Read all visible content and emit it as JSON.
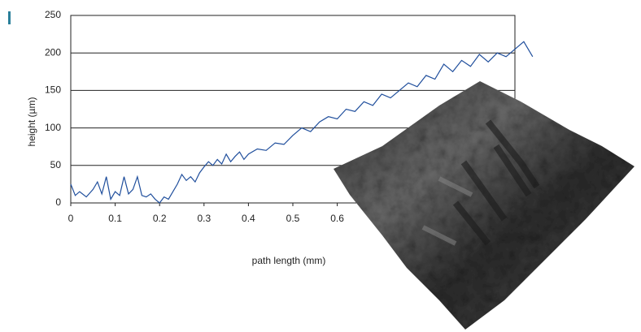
{
  "chart_data": {
    "type": "line",
    "x_label": "path length (mm)",
    "y_label": "height (µm)",
    "x": [
      0,
      0.01,
      0.02,
      0.035,
      0.05,
      0.06,
      0.07,
      0.08,
      0.09,
      0.1,
      0.11,
      0.12,
      0.13,
      0.14,
      0.15,
      0.16,
      0.17,
      0.18,
      0.19,
      0.2,
      0.21,
      0.22,
      0.23,
      0.24,
      0.25,
      0.26,
      0.27,
      0.28,
      0.29,
      0.3,
      0.31,
      0.32,
      0.33,
      0.34,
      0.35,
      0.36,
      0.37,
      0.38,
      0.39,
      0.4,
      0.42,
      0.44,
      0.46,
      0.48,
      0.5,
      0.52,
      0.54,
      0.56,
      0.58,
      0.6,
      0.62,
      0.64,
      0.66,
      0.68,
      0.7,
      0.72,
      0.74,
      0.76,
      0.78,
      0.8,
      0.82,
      0.84,
      0.86,
      0.88,
      0.9,
      0.92,
      0.94,
      0.96,
      0.98,
      1.0,
      1.02,
      1.04
    ],
    "values": [
      25,
      10,
      15,
      8,
      18,
      28,
      12,
      35,
      5,
      15,
      10,
      35,
      12,
      18,
      35,
      10,
      8,
      12,
      5,
      0,
      8,
      5,
      15,
      25,
      38,
      30,
      35,
      28,
      40,
      48,
      55,
      50,
      58,
      52,
      65,
      55,
      62,
      68,
      58,
      65,
      72,
      70,
      80,
      78,
      90,
      100,
      95,
      108,
      115,
      112,
      125,
      122,
      135,
      130,
      145,
      140,
      150,
      160,
      155,
      170,
      165,
      185,
      175,
      190,
      182,
      198,
      188,
      200,
      195,
      205,
      215,
      195
    ],
    "color": "#1f4e9c",
    "xlim": [
      0,
      1
    ],
    "xticks": [
      0,
      0.1,
      0.2,
      0.3,
      0.4,
      0.5,
      0.6
    ],
    "ylim": [
      0,
      250
    ],
    "yticks": [
      0,
      50,
      100,
      150,
      200,
      250
    ],
    "grid": true
  }
}
